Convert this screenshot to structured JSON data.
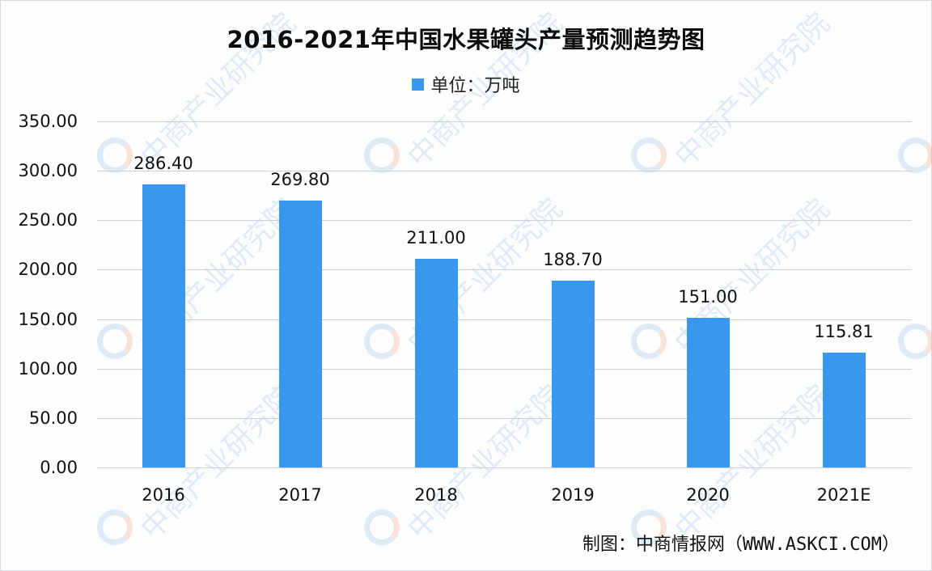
{
  "chart_data": {
    "type": "bar",
    "title": "2016-2021年中国水果罐头产量预测趋势图",
    "legend": [
      {
        "label": "单位：万吨",
        "color": "#3897ef"
      }
    ],
    "legend_position": "top",
    "categories": [
      "2016",
      "2017",
      "2018",
      "2019",
      "2020",
      "2021E"
    ],
    "series": [
      {
        "name": "单位：万吨",
        "values": [
          286.4,
          269.8,
          211.0,
          188.7,
          151.0,
          115.81
        ],
        "color": "#3897ef"
      }
    ],
    "value_labels": [
      "286.40",
      "269.80",
      "211.00",
      "188.70",
      "151.00",
      "115.81"
    ],
    "xlabel": "",
    "ylabel": "",
    "ylim": [
      0,
      350
    ],
    "yticks": [
      "0.00",
      "50.00",
      "100.00",
      "150.00",
      "200.00",
      "250.00",
      "300.00",
      "350.00"
    ],
    "grid": true
  },
  "footer": {
    "source": "制图：中商情报网（WWW.ASKCI.COM）"
  },
  "watermark": {
    "text": "中商产业研究院"
  }
}
